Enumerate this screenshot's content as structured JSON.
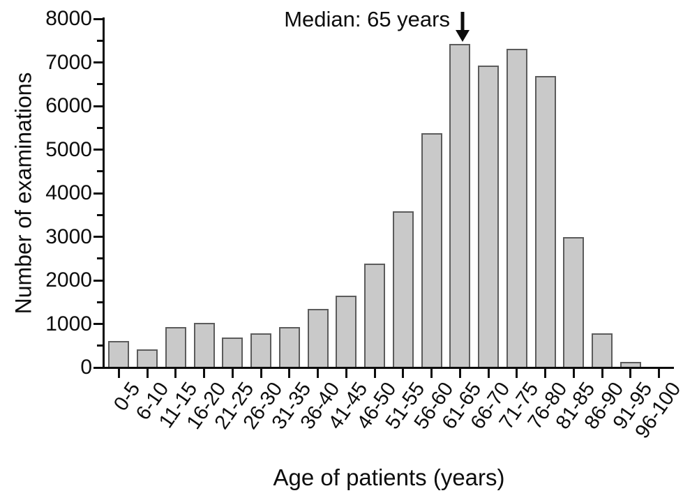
{
  "chart_data": {
    "type": "bar",
    "title": "",
    "annotation": "Median: 65 years",
    "annotation_points_to": "61-65",
    "annotation_arrow_icon": "down-arrow-icon",
    "xlabel": "Age of patients (years)",
    "ylabel": "Number of examinations",
    "categories": [
      "0-5",
      "6-10",
      "11-15",
      "16-20",
      "21-25",
      "26-30",
      "31-35",
      "36-40",
      "41-45",
      "46-50",
      "51-55",
      "56-60",
      "61-65",
      "66-70",
      "71-75",
      "76-80",
      "81-85",
      "86-90",
      "91-95",
      "96-100"
    ],
    "values": [
      620,
      430,
      940,
      1040,
      700,
      800,
      940,
      1360,
      1660,
      2400,
      3600,
      5390,
      7440,
      6940,
      7330,
      6700,
      3010,
      800,
      140,
      30
    ],
    "ylim": [
      0,
      8000
    ],
    "ytick_interval": 1000,
    "yminor_interval": 500,
    "ytick_labels": [
      "0",
      "1000",
      "2000",
      "3000",
      "4000",
      "5000",
      "6000",
      "7000",
      "8000"
    ],
    "grid": false,
    "legend": "none",
    "colors": {
      "bar_fill": "#c9c9c9",
      "bar_border": "#5c5c5c",
      "axis": "#0d0d0d",
      "text": "#0d0d0d",
      "background": "#ffffff"
    }
  }
}
